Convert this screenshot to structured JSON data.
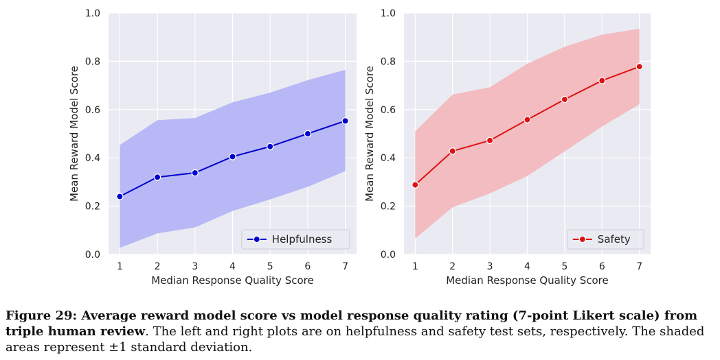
{
  "chart_data": [
    {
      "type": "line",
      "xlabel": "Median Response Quality Score",
      "ylabel": "Mean Reward Model Score",
      "x": [
        1,
        2,
        3,
        4,
        5,
        6,
        7
      ],
      "xlim": [
        0.7,
        7.3
      ],
      "ylim": [
        0.0,
        1.0
      ],
      "yticks": [
        "0.0",
        "0.2",
        "0.4",
        "0.6",
        "0.8",
        "1.0"
      ],
      "grid": true,
      "legend_position": "lower-right",
      "series": [
        {
          "name": "Helpfulness",
          "color": "#0000cc",
          "band_color": "#b8b8f6",
          "values": [
            0.24,
            0.32,
            0.338,
            0.405,
            0.447,
            0.5,
            0.553
          ],
          "upper": [
            0.453,
            0.556,
            0.565,
            0.63,
            0.67,
            0.722,
            0.765
          ],
          "lower": [
            0.027,
            0.087,
            0.112,
            0.18,
            0.228,
            0.28,
            0.345
          ]
        }
      ]
    },
    {
      "type": "line",
      "xlabel": "Median Response Quality Score",
      "ylabel": "Mean Reward Model Score",
      "x": [
        1,
        2,
        3,
        4,
        5,
        6,
        7
      ],
      "xlim": [
        0.7,
        7.3
      ],
      "ylim": [
        0.0,
        1.0
      ],
      "yticks": [
        "0.0",
        "0.2",
        "0.4",
        "0.6",
        "0.8",
        "1.0"
      ],
      "grid": true,
      "legend_position": "lower-right",
      "series": [
        {
          "name": "Safety",
          "color": "#dd1111",
          "band_color": "#f2bcc0",
          "values": [
            0.288,
            0.428,
            0.472,
            0.558,
            0.642,
            0.72,
            0.778
          ],
          "upper": [
            0.51,
            0.662,
            0.693,
            0.79,
            0.86,
            0.91,
            0.935
          ],
          "lower": [
            0.066,
            0.195,
            0.253,
            0.325,
            0.427,
            0.53,
            0.622
          ]
        }
      ]
    }
  ],
  "caption": {
    "bold": "Figure 29: Average reward model score vs model response quality rating (7-point Likert scale) from triple human review",
    "text": ". The left and right plots are on helpfulness and safety test sets, respectively. The shaded areas represent ±1 standard deviation."
  }
}
